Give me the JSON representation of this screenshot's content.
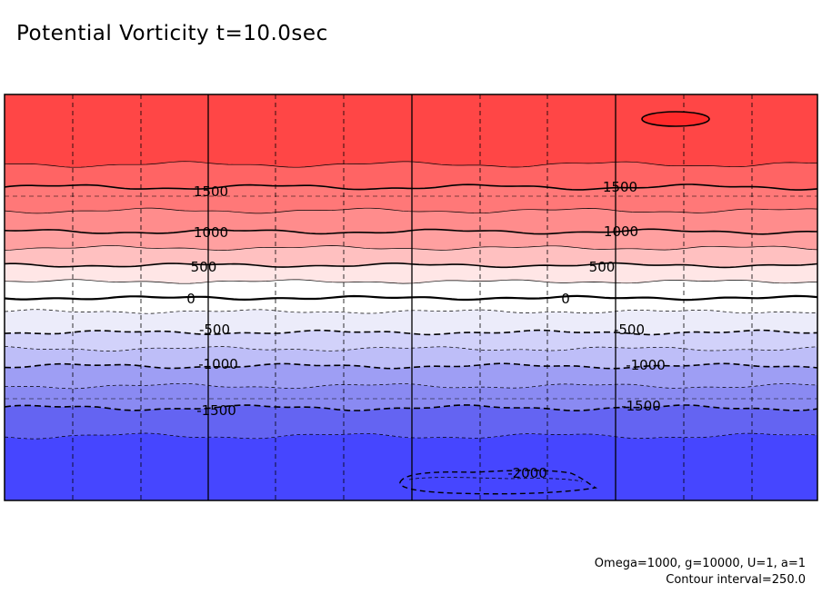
{
  "chart_data": {
    "type": "contour",
    "title": "Potential Vorticity t=10.0sec",
    "footnotes": {
      "params": "Omega=1000, g=10000, U=1, a=1",
      "interval": "Contour interval=250.0"
    },
    "contour_interval": 250.0,
    "zlim": [
      -2000,
      2000
    ],
    "colormap": "blue-white-red diverging; negative contours dashed",
    "grid": "solid major verticals at 3 positions, dashed minor verticals and dashed horizontal mid-lines",
    "bands": [
      {
        "lo": 1750,
        "hi": 2000,
        "color": "#ff4646"
      },
      {
        "lo": 1500,
        "hi": 1750,
        "color": "#ff6464"
      },
      {
        "lo": 1250,
        "hi": 1500,
        "color": "#ff7878"
      },
      {
        "lo": 1000,
        "hi": 1250,
        "color": "#ff8c8c"
      },
      {
        "lo": 750,
        "hi": 1000,
        "color": "#ffa0a0"
      },
      {
        "lo": 500,
        "hi": 750,
        "color": "#ffc0c0"
      },
      {
        "lo": 250,
        "hi": 500,
        "color": "#ffe6e6"
      },
      {
        "lo": 0,
        "hi": 250,
        "color": "#ffffff"
      },
      {
        "lo": -250,
        "hi": 0,
        "color": "#ffffff"
      },
      {
        "lo": -500,
        "hi": -250,
        "color": "#ececfa"
      },
      {
        "lo": -750,
        "hi": -500,
        "color": "#d2d2fa"
      },
      {
        "lo": -1000,
        "hi": -750,
        "color": "#bebef8"
      },
      {
        "lo": -1250,
        "hi": -1000,
        "color": "#9e9ef4"
      },
      {
        "lo": -1500,
        "hi": -1250,
        "color": "#8a8af2"
      },
      {
        "lo": -1750,
        "hi": -1500,
        "color": "#6464f2"
      },
      {
        "lo": -2000,
        "hi": -1750,
        "color": "#4646ff"
      }
    ],
    "contours": [
      {
        "level": 1750,
        "label": ""
      },
      {
        "level": 1500,
        "label": "1500"
      },
      {
        "level": 1250,
        "label": ""
      },
      {
        "level": 1000,
        "label": "1000"
      },
      {
        "level": 750,
        "label": ""
      },
      {
        "level": 500,
        "label": "500"
      },
      {
        "level": 250,
        "label": ""
      },
      {
        "level": 0,
        "label": "0"
      },
      {
        "level": -250,
        "label": ""
      },
      {
        "level": -500,
        "label": "-500"
      },
      {
        "level": -750,
        "label": ""
      },
      {
        "level": -1000,
        "label": "-1000"
      },
      {
        "level": -1250,
        "label": ""
      },
      {
        "level": -1500,
        "label": "-1500"
      },
      {
        "level": -1750,
        "label": ""
      }
    ],
    "closed_contours": [
      {
        "level": 2000,
        "label": "",
        "color": "#ff2a2a"
      },
      {
        "level": -2000,
        "label": "-2000",
        "color": ""
      }
    ]
  }
}
